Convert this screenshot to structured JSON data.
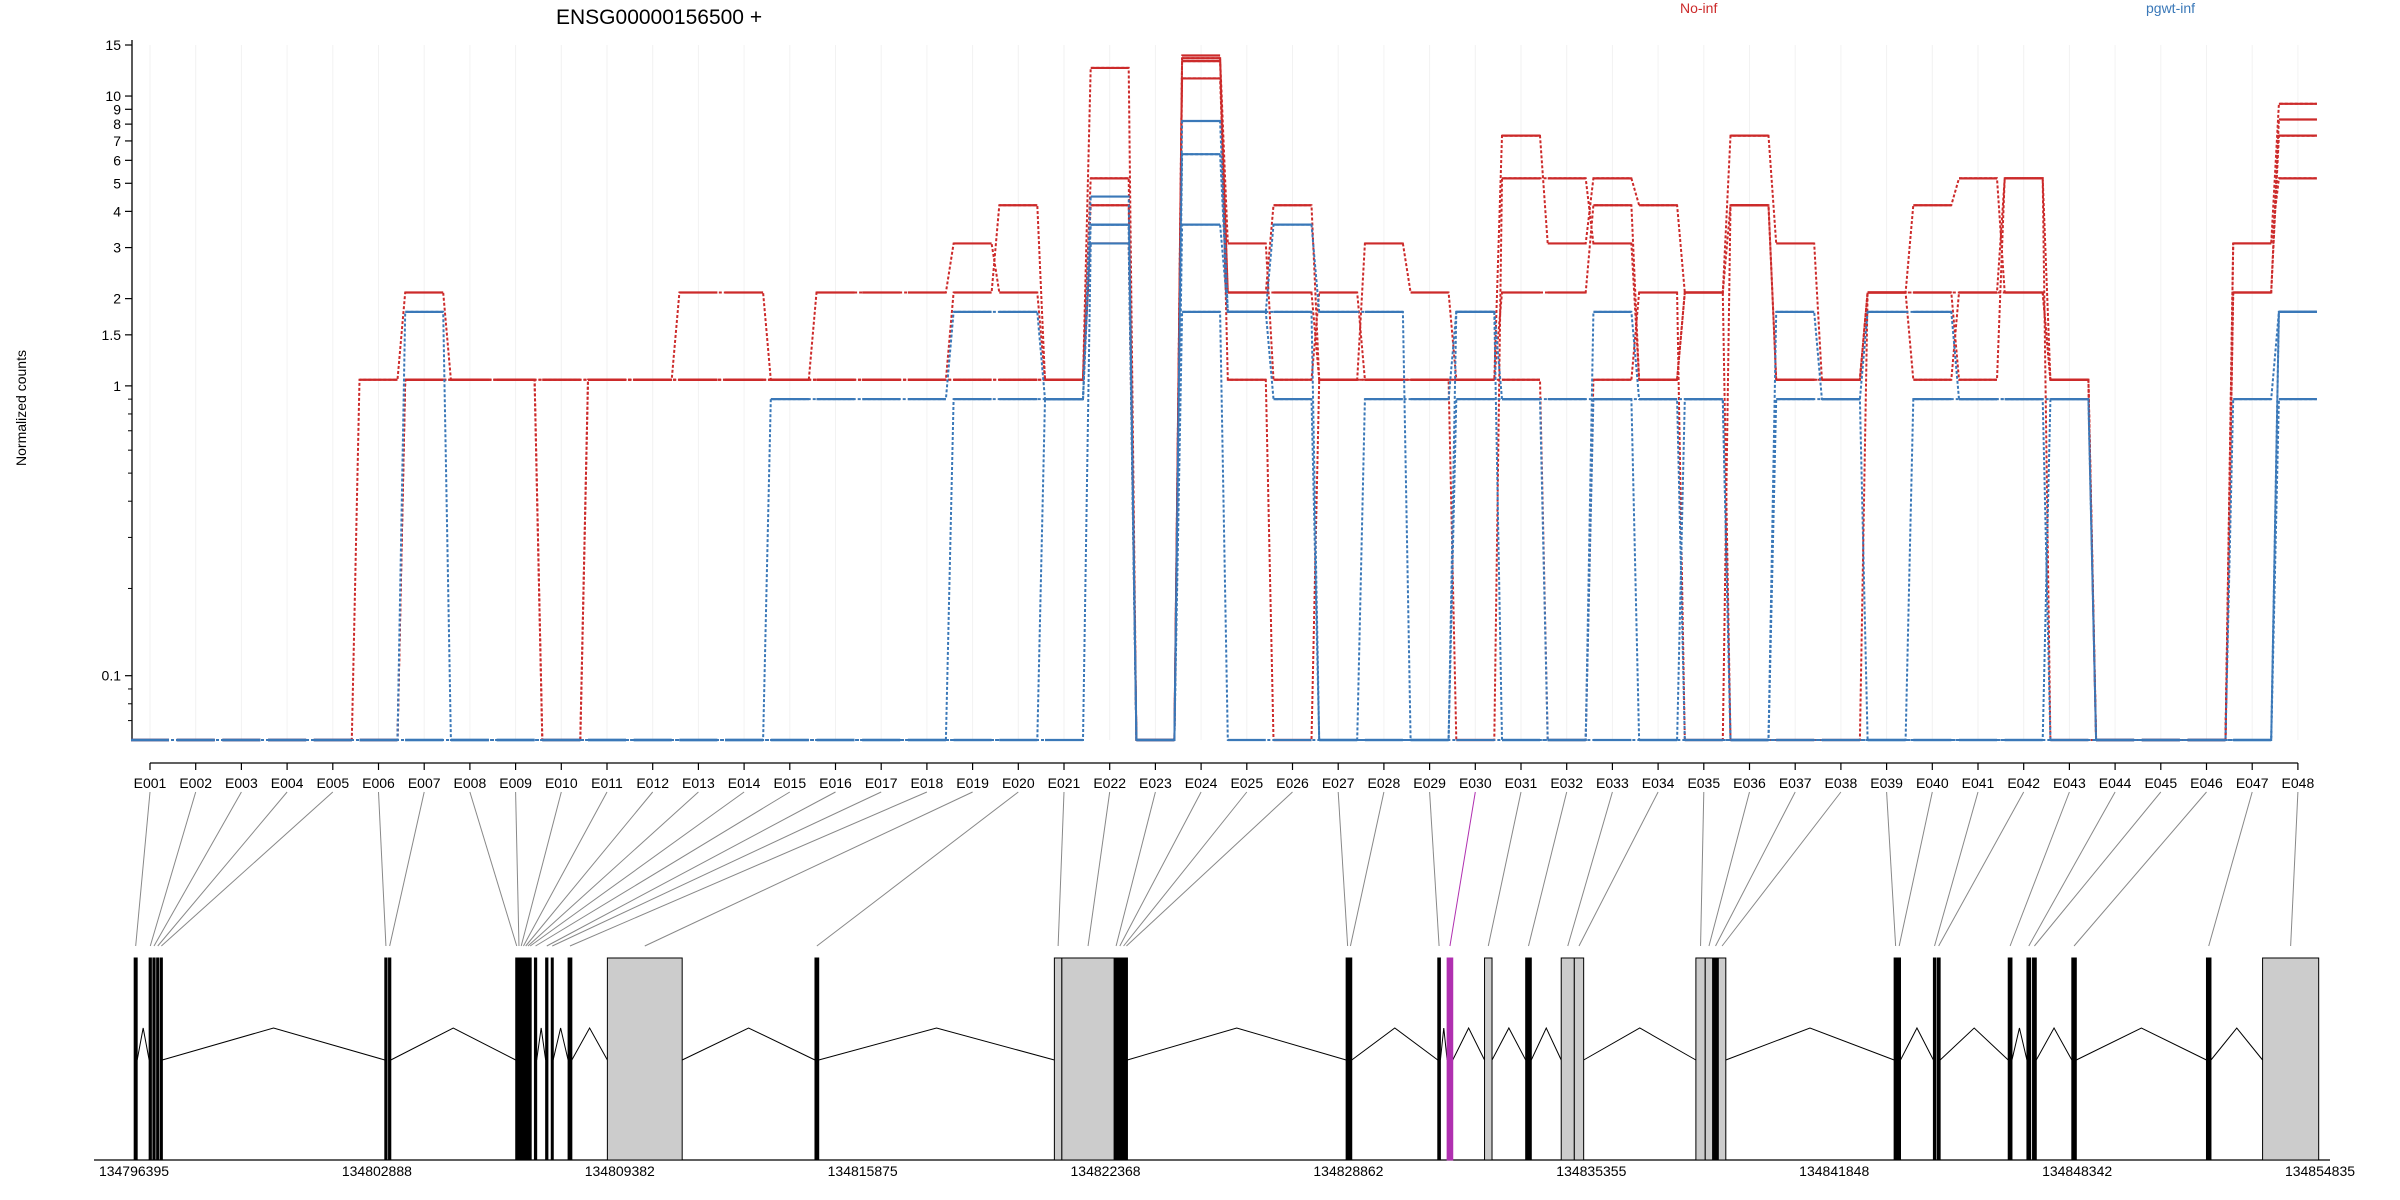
{
  "chart_data": {
    "type": "line",
    "title": "ENSG00000156500 +",
    "xlabel": "",
    "ylabel": "Normalized counts",
    "y_scale": "log",
    "ylim": [
      0.06,
      15
    ],
    "y_ticks": [
      {
        "value": 0.1,
        "label": "0.1"
      },
      {
        "value": 1,
        "label": "1"
      },
      {
        "value": 1.5,
        "label": "1.5"
      },
      {
        "value": 2,
        "label": "2"
      },
      {
        "value": 3,
        "label": "3"
      },
      {
        "value": 4,
        "label": "4"
      },
      {
        "value": 5,
        "label": "5"
      },
      {
        "value": 6,
        "label": "6"
      },
      {
        "value": 7,
        "label": "7"
      },
      {
        "value": 8,
        "label": "8"
      },
      {
        "value": 9,
        "label": "9"
      },
      {
        "value": 10,
        "label": "10"
      },
      {
        "value": 15,
        "label": "15"
      }
    ],
    "grid": "vertical at exon bins",
    "legend_placement": "top",
    "categories": [
      "E001",
      "E002",
      "E003",
      "E004",
      "E005",
      "E006",
      "E007",
      "E008",
      "E009",
      "E010",
      "E011",
      "E012",
      "E013",
      "E014",
      "E015",
      "E016",
      "E017",
      "E018",
      "E019",
      "E020",
      "E021",
      "E022",
      "E023",
      "E024",
      "E025",
      "E026",
      "E027",
      "E028",
      "E029",
      "E030",
      "E031",
      "E032",
      "E033",
      "E034",
      "E035",
      "E036",
      "E037",
      "E038",
      "E039",
      "E040",
      "E041",
      "E042",
      "E043",
      "E044",
      "E045",
      "E046",
      "E047",
      "E048"
    ],
    "series": [
      {
        "name": "No-inf",
        "color": "#cc2a2a",
        "samples": [
          [
            0.06,
            0.06,
            0.06,
            0.06,
            0.06,
            0.06,
            1.05,
            1.05,
            1.05,
            1.05,
            1.05,
            1.05,
            1.05,
            1.05,
            1.05,
            1.05,
            1.05,
            1.05,
            1.05,
            1.05,
            1.05,
            5.2,
            0.06,
            13.5,
            3.1,
            1.05,
            2.1,
            1.05,
            1.05,
            0.06,
            5.2,
            5.2,
            3.1,
            1.05,
            2.1,
            7.3,
            3.1,
            1.05,
            2.1,
            1.05,
            2.1,
            5.2,
            1.05,
            0.06,
            0.06,
            0.06,
            3.1,
            9.4
          ],
          [
            0.06,
            0.06,
            0.06,
            0.06,
            0.06,
            1.05,
            2.1,
            1.05,
            1.05,
            1.05,
            1.05,
            1.05,
            2.1,
            2.1,
            1.05,
            2.1,
            2.1,
            2.1,
            3.1,
            2.1,
            1.05,
            12.5,
            0.06,
            11.5,
            2.1,
            2.1,
            1.05,
            3.1,
            2.1,
            1.05,
            7.3,
            3.1,
            5.2,
            4.2,
            2.1,
            4.2,
            1.05,
            1.05,
            2.1,
            4.2,
            5.2,
            2.1,
            1.05,
            0.06,
            0.06,
            0.06,
            2.1,
            8.3
          ],
          [
            0.06,
            0.06,
            0.06,
            0.06,
            0.06,
            0.06,
            1.05,
            1.05,
            1.05,
            0.06,
            1.05,
            1.05,
            1.05,
            1.05,
            1.05,
            1.05,
            1.05,
            1.05,
            2.1,
            4.2,
            1.05,
            3.1,
            0.06,
            13.8,
            1.05,
            0.06,
            1.05,
            1.05,
            1.05,
            1.05,
            2.1,
            2.1,
            4.2,
            1.05,
            2.1,
            0.06,
            0.06,
            0.06,
            2.1,
            2.1,
            1.05,
            5.2,
            0.06,
            0.06,
            0.06,
            0.06,
            2.1,
            7.3
          ],
          [
            0.06,
            0.06,
            0.06,
            0.06,
            0.06,
            0.06,
            1.05,
            1.05,
            1.05,
            0.06,
            1.05,
            1.05,
            1.05,
            1.05,
            1.05,
            1.05,
            1.05,
            1.05,
            1.05,
            1.05,
            1.05,
            4.2,
            0.06,
            13.2,
            2.1,
            4.2,
            1.05,
            1.05,
            1.05,
            1.05,
            1.05,
            0.06,
            1.05,
            2.1,
            0.06,
            4.2,
            1.05,
            1.05,
            2.1,
            2.1,
            2.1,
            2.1,
            1.05,
            0.06,
            0.06,
            0.06,
            3.1,
            5.2
          ]
        ]
      },
      {
        "name": "pgwt-inf",
        "color": "#3a78b8",
        "samples": [
          [
            0.06,
            0.06,
            0.06,
            0.06,
            0.06,
            0.06,
            1.8,
            0.06,
            0.06,
            0.06,
            0.06,
            0.06,
            0.06,
            0.06,
            0.06,
            0.06,
            0.06,
            0.06,
            0.06,
            0.06,
            0.9,
            4.5,
            0.06,
            8.2,
            1.8,
            3.6,
            1.8,
            1.8,
            0.06,
            0.9,
            0.9,
            0.06,
            1.8,
            0.9,
            0.9,
            0.06,
            1.8,
            0.9,
            1.8,
            1.8,
            0.9,
            0.9,
            0.9,
            0.06,
            0.06,
            0.06,
            0.9,
            1.8
          ],
          [
            0.06,
            0.06,
            0.06,
            0.06,
            0.06,
            0.06,
            0.06,
            0.06,
            0.06,
            0.06,
            0.06,
            0.06,
            0.06,
            0.06,
            0.9,
            0.9,
            0.9,
            0.9,
            1.8,
            1.8,
            0.9,
            3.6,
            0.06,
            6.3,
            1.8,
            0.9,
            0.06,
            0.9,
            0.9,
            1.8,
            0.9,
            0.9,
            0.9,
            0.9,
            0.06,
            0.06,
            0.9,
            0.9,
            0.06,
            0.9,
            0.9,
            0.9,
            0.06,
            0.06,
            0.06,
            0.06,
            0.06,
            0.9
          ],
          [
            0.06,
            0.06,
            0.06,
            0.06,
            0.06,
            0.06,
            0.06,
            0.06,
            0.06,
            0.06,
            0.06,
            0.06,
            0.06,
            0.06,
            0.06,
            0.06,
            0.06,
            0.06,
            0.9,
            0.9,
            0.9,
            3.6,
            0.06,
            3.6,
            1.8,
            1.8,
            0.06,
            0.06,
            0.06,
            1.8,
            0.06,
            0.06,
            0.9,
            0.06,
            0.9,
            0.06,
            0.06,
            0.06,
            0.06,
            0.06,
            0.06,
            0.06,
            0.9,
            0.06,
            0.06,
            0.06,
            0.06,
            1.8
          ],
          [
            0.06,
            0.06,
            0.06,
            0.06,
            0.06,
            0.06,
            0.06,
            0.06,
            0.06,
            0.06,
            0.06,
            0.06,
            0.06,
            0.06,
            0.06,
            0.06,
            0.06,
            0.06,
            0.06,
            0.06,
            0.06,
            3.1,
            0.06,
            1.8,
            0.06,
            0.06,
            0.06,
            0.06,
            0.06,
            0.06,
            0.06,
            0.06,
            0.06,
            0.06,
            0.06,
            0.06,
            0.06,
            0.06,
            0.06,
            0.06,
            0.06,
            0.06,
            0.06,
            0.06,
            0.06,
            0.06,
            0.06,
            1.8
          ]
        ]
      }
    ],
    "gene_model": {
      "coordinate_labels": [
        "134796395",
        "134802888",
        "134809382",
        "134815875",
        "134822368",
        "134828862",
        "134835355",
        "134841848",
        "134848342",
        "134854835"
      ],
      "coordinate_range": [
        134796395,
        134854835
      ],
      "highlighted_exon": "E030",
      "highlight_color": "#b030b0",
      "exons": [
        {
          "id": "E001",
          "start": 134796400,
          "end": 134796480
        },
        {
          "id": "E002",
          "start": 134796800,
          "end": 134796860
        },
        {
          "id": "E003",
          "start": 134796900,
          "end": 134796960
        },
        {
          "id": "E004",
          "start": 134797000,
          "end": 134797060
        },
        {
          "id": "E005",
          "start": 134797100,
          "end": 134797150
        },
        {
          "id": "E006",
          "start": 134803100,
          "end": 134803160
        },
        {
          "id": "E007",
          "start": 134803200,
          "end": 134803260
        },
        {
          "id": "E008",
          "start": 134806600,
          "end": 134806640
        },
        {
          "id": "E009",
          "start": 134806660,
          "end": 134806700
        },
        {
          "id": "E010",
          "start": 134806720,
          "end": 134806760
        },
        {
          "id": "E011",
          "start": 134806780,
          "end": 134806820
        },
        {
          "id": "E012",
          "start": 134806840,
          "end": 134806880
        },
        {
          "id": "E013",
          "start": 134806900,
          "end": 134806940
        },
        {
          "id": "E014",
          "start": 134806960,
          "end": 134807000
        },
        {
          "id": "E015",
          "start": 134807100,
          "end": 134807160
        },
        {
          "id": "E016",
          "start": 134807400,
          "end": 134807460
        },
        {
          "id": "E017",
          "start": 134807550,
          "end": 134807600
        },
        {
          "id": "E018",
          "start": 134808000,
          "end": 134808100
        },
        {
          "id": "E019",
          "start": 134809050,
          "end": 134811050
        },
        {
          "id": "E020",
          "start": 134814600,
          "end": 134814700
        },
        {
          "id": "E021",
          "start": 134821000,
          "end": 134821200
        },
        {
          "id": "E022",
          "start": 134821200,
          "end": 134822600
        },
        {
          "id": "E023",
          "start": 134822600,
          "end": 134822700
        },
        {
          "id": "E024",
          "start": 134822700,
          "end": 134822800
        },
        {
          "id": "E025",
          "start": 134822800,
          "end": 134822900
        },
        {
          "id": "E026",
          "start": 134822900,
          "end": 134822950
        },
        {
          "id": "E027",
          "start": 134828800,
          "end": 134828880
        },
        {
          "id": "E028",
          "start": 134828880,
          "end": 134828950
        },
        {
          "id": "E029",
          "start": 134831250,
          "end": 134831320
        },
        {
          "id": "E030",
          "start": 134831500,
          "end": 134831650
        },
        {
          "id": "E031",
          "start": 134832500,
          "end": 134832700
        },
        {
          "id": "E032",
          "start": 134833600,
          "end": 134833750
        },
        {
          "id": "E033",
          "start": 134834550,
          "end": 134834900
        },
        {
          "id": "E034",
          "start": 134834900,
          "end": 134835150
        },
        {
          "id": "E035",
          "start": 134838150,
          "end": 134838400
        },
        {
          "id": "E036",
          "start": 134838400,
          "end": 134838600
        },
        {
          "id": "E037",
          "start": 134838600,
          "end": 134838750
        },
        {
          "id": "E038",
          "start": 134838750,
          "end": 134838950
        },
        {
          "id": "E039",
          "start": 134843450,
          "end": 134843530
        },
        {
          "id": "E040",
          "start": 134843550,
          "end": 134843620
        },
        {
          "id": "E041",
          "start": 134844500,
          "end": 134844560
        },
        {
          "id": "E042",
          "start": 134844600,
          "end": 134844680
        },
        {
          "id": "E043",
          "start": 134846500,
          "end": 134846600
        },
        {
          "id": "E044",
          "start": 134847000,
          "end": 134847100
        },
        {
          "id": "E045",
          "start": 134847150,
          "end": 134847250
        },
        {
          "id": "E046",
          "start": 134848200,
          "end": 134848320
        },
        {
          "id": "E047",
          "start": 134851800,
          "end": 134851920
        },
        {
          "id": "E048",
          "start": 134853300,
          "end": 134854800
        }
      ]
    }
  }
}
